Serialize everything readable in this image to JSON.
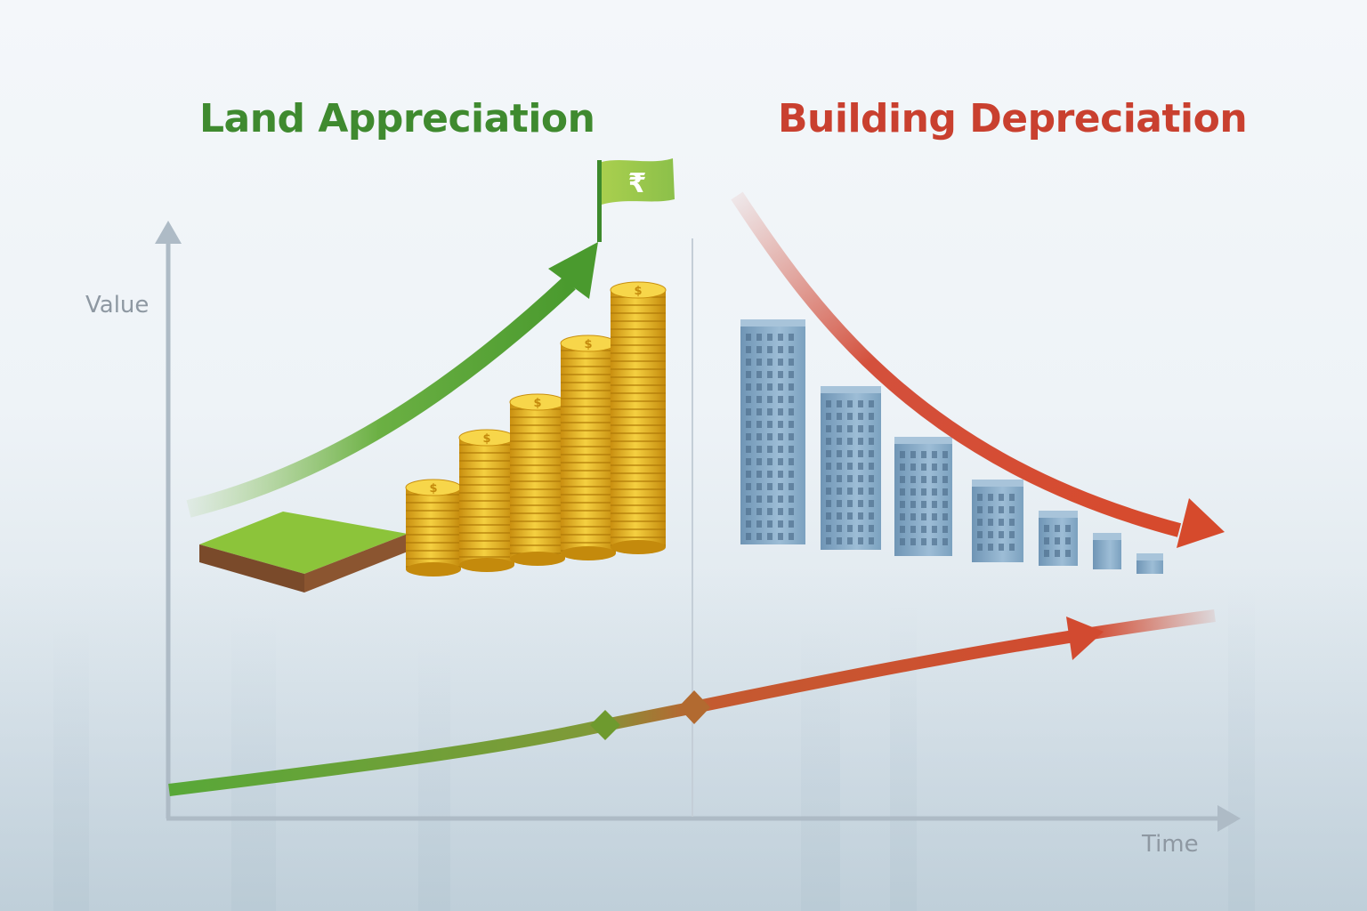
{
  "titles": {
    "left": "Land Appreciation",
    "right": "Building Depreciation"
  },
  "axes": {
    "y_label": "Value",
    "x_label": "Time"
  },
  "flag": {
    "symbol": "₹",
    "icon": "rupee-flag"
  },
  "coins": {
    "symbol": "$",
    "stacks": 5
  },
  "buildings": {
    "count": 7
  },
  "colors": {
    "appreciation": "#3f8a2f",
    "depreciation": "#c9402f",
    "coin": "#e8b820",
    "building": "#7fa4c2",
    "axis": "#a9b6c2"
  }
}
